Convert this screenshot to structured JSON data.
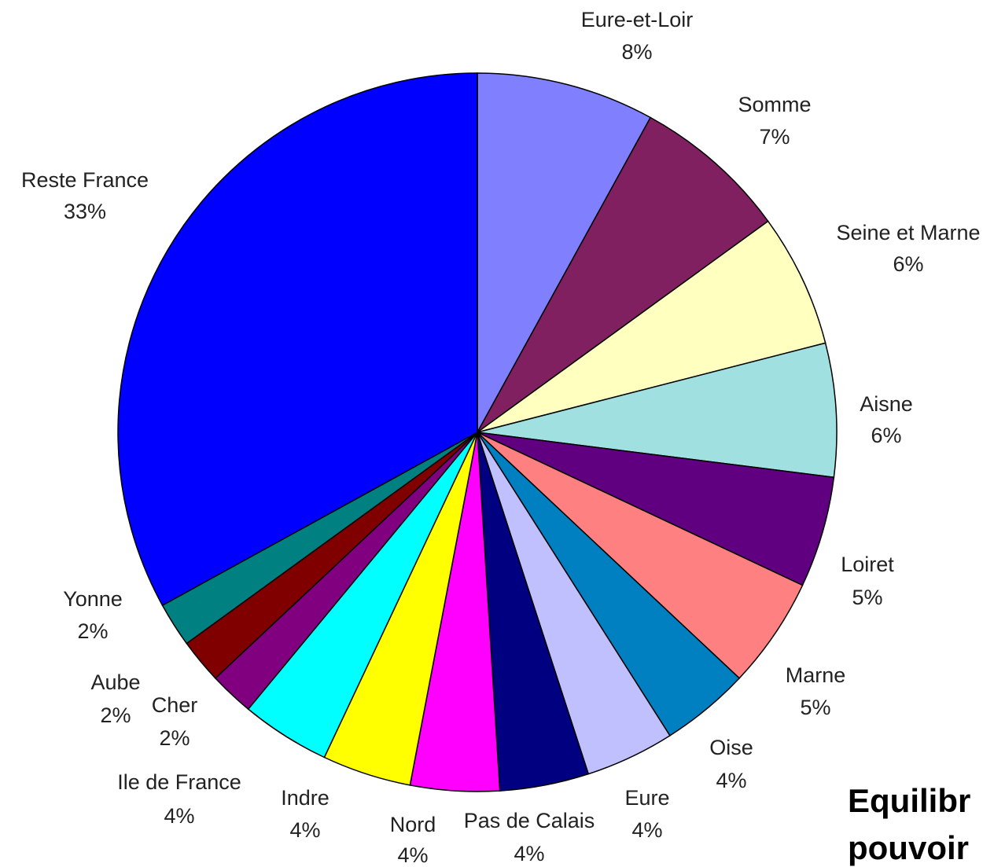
{
  "chart_data": {
    "type": "pie",
    "categories": [
      "Eure-et-Loir",
      "Somme",
      "Seine et Marne",
      "Aisne",
      "Loiret",
      "Marne",
      "Oise",
      "Eure",
      "Pas de Calais",
      "Nord",
      "Indre",
      "Ile de France",
      "Cher",
      "Aube",
      "Yonne",
      "Reste France"
    ],
    "values": [
      8,
      7,
      6,
      6,
      5,
      5,
      4,
      4,
      4,
      4,
      4,
      4,
      2,
      2,
      2,
      33
    ],
    "value_labels": [
      "8%",
      "7%",
      "6%",
      "6%",
      "5%",
      "5%",
      "4%",
      "4%",
      "4%",
      "4%",
      "4%",
      "4%",
      "2%",
      "2%",
      "2%",
      "33%"
    ],
    "colors": [
      "#8080ff",
      "#802060",
      "#ffffc0",
      "#a0e0e0",
      "#600080",
      "#ff8080",
      "#0080c0",
      "#c0c0ff",
      "#000080",
      "#ff00ff",
      "#ffff00",
      "#00ffff",
      "#800080",
      "#800000",
      "#008080",
      "#0000ff"
    ],
    "annotations": [
      "Equilibr",
      "pouvoir"
    ]
  }
}
